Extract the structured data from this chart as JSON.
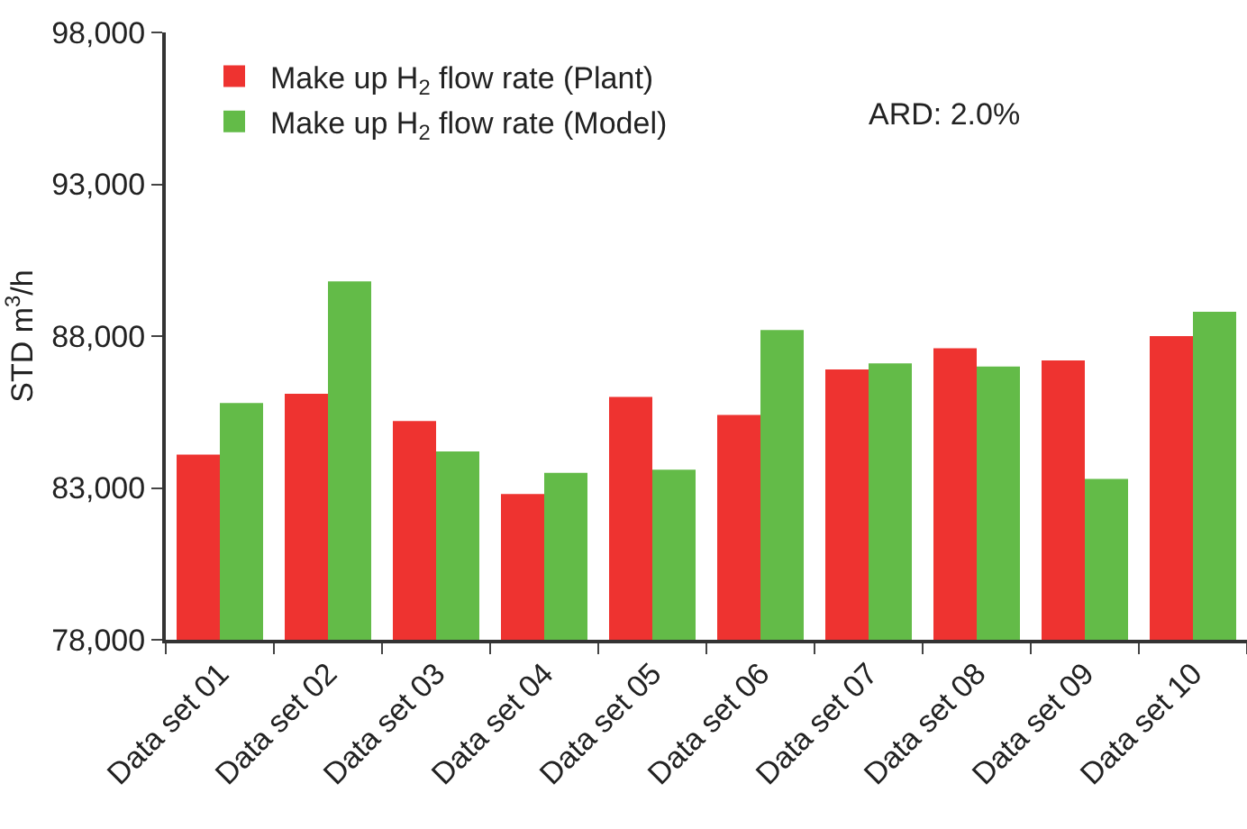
{
  "chart_data": {
    "type": "bar",
    "categories": [
      "Data set 01",
      "Data set 02",
      "Data set 03",
      "Data set 04",
      "Data set 05",
      "Data set 06",
      "Data set 07",
      "Data set 08",
      "Data set 09",
      "Data set 10"
    ],
    "series": [
      {
        "name": "Make up H$_{2}$ flow rate (Plant)",
        "color": "#ee3330",
        "values": [
          84100,
          86100,
          85200,
          82800,
          86000,
          85400,
          86900,
          87600,
          87200,
          88000
        ]
      },
      {
        "name": "Make up H$_{2}$ flow rate (Model)",
        "color": "#63bb48",
        "values": [
          85800,
          89800,
          84200,
          83500,
          83600,
          88200,
          87100,
          87000,
          83300,
          88800
        ]
      }
    ],
    "ylabel": "STD m$^{3}$/h",
    "ylim": [
      78000,
      98000
    ],
    "yticks": [
      {
        "value": 78000,
        "label": "78,000"
      },
      {
        "value": 83000,
        "label": "83,000"
      },
      {
        "value": 88000,
        "label": "88,000"
      },
      {
        "value": 93000,
        "label": "93,000"
      },
      {
        "value": 98000,
        "label": "98,000"
      }
    ],
    "annotations": [
      "ARD: 2.0%"
    ],
    "legend": "top left",
    "grid": false
  }
}
